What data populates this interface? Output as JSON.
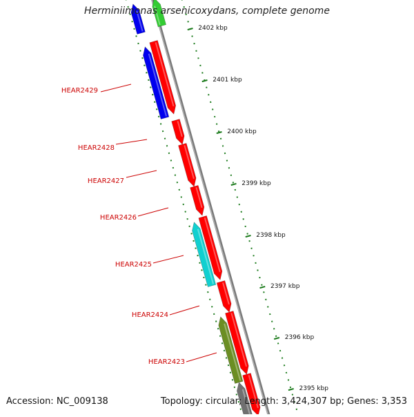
{
  "title": "Herminiimonas arsenicoxydans, complete genome",
  "footer": {
    "accession": "Accession: NC_009138",
    "topology": "Topology: circular; Length: 3,424,307 bp; Genes: 3,353"
  },
  "colors": {
    "backbone": "#7a7a7a",
    "tick": "#1a7a1a",
    "label": "#cc0000",
    "red": "#ff0000",
    "blue": "#0000ee",
    "cyan": "#10d0d0",
    "olive": "#6b8e23",
    "green": "#33cc33",
    "grey": "#707070"
  },
  "ruler": [
    {
      "label": "2402 kbp"
    },
    {
      "label": "2401 kbp"
    },
    {
      "label": "2400 kbp"
    },
    {
      "label": "2399 kbp"
    },
    {
      "label": "2398 kbp"
    },
    {
      "label": "2397 kbp"
    },
    {
      "label": "2396 kbp"
    },
    {
      "label": "2395 kbp"
    }
  ],
  "genes": [
    {
      "name": "HEAR2429",
      "strand": "-",
      "color": "blue"
    },
    {
      "name": "HEAR2428",
      "strand": "+",
      "color": "red"
    },
    {
      "name": "HEAR2427",
      "strand": "+",
      "color": "red"
    },
    {
      "name": "HEAR2426",
      "strand": "+",
      "color": "red"
    },
    {
      "name": "HEAR2425",
      "strand": "-",
      "color": "cyan"
    },
    {
      "name": "HEAR2424",
      "strand": "+",
      "color": "red"
    },
    {
      "name": "HEAR2423",
      "strand": "-",
      "color": "olive"
    }
  ]
}
